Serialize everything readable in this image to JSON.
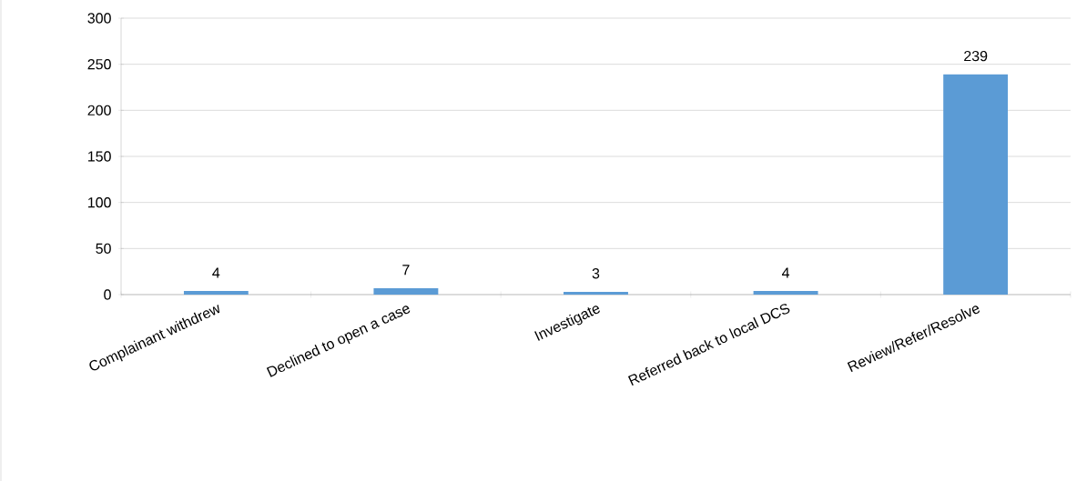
{
  "chart_data": {
    "type": "bar",
    "categories": [
      "Complainant withdrew",
      "Declined to open a case",
      "Investigate",
      "Referred back to local DCS",
      "Review/Refer/Resolve"
    ],
    "values": [
      4,
      7,
      3,
      4,
      239
    ],
    "color": "#5b9bd5",
    "ylim": [
      0,
      300
    ],
    "yticks": [
      0,
      50,
      100,
      150,
      200,
      250,
      300
    ],
    "grid": "y",
    "data_labels": true
  }
}
